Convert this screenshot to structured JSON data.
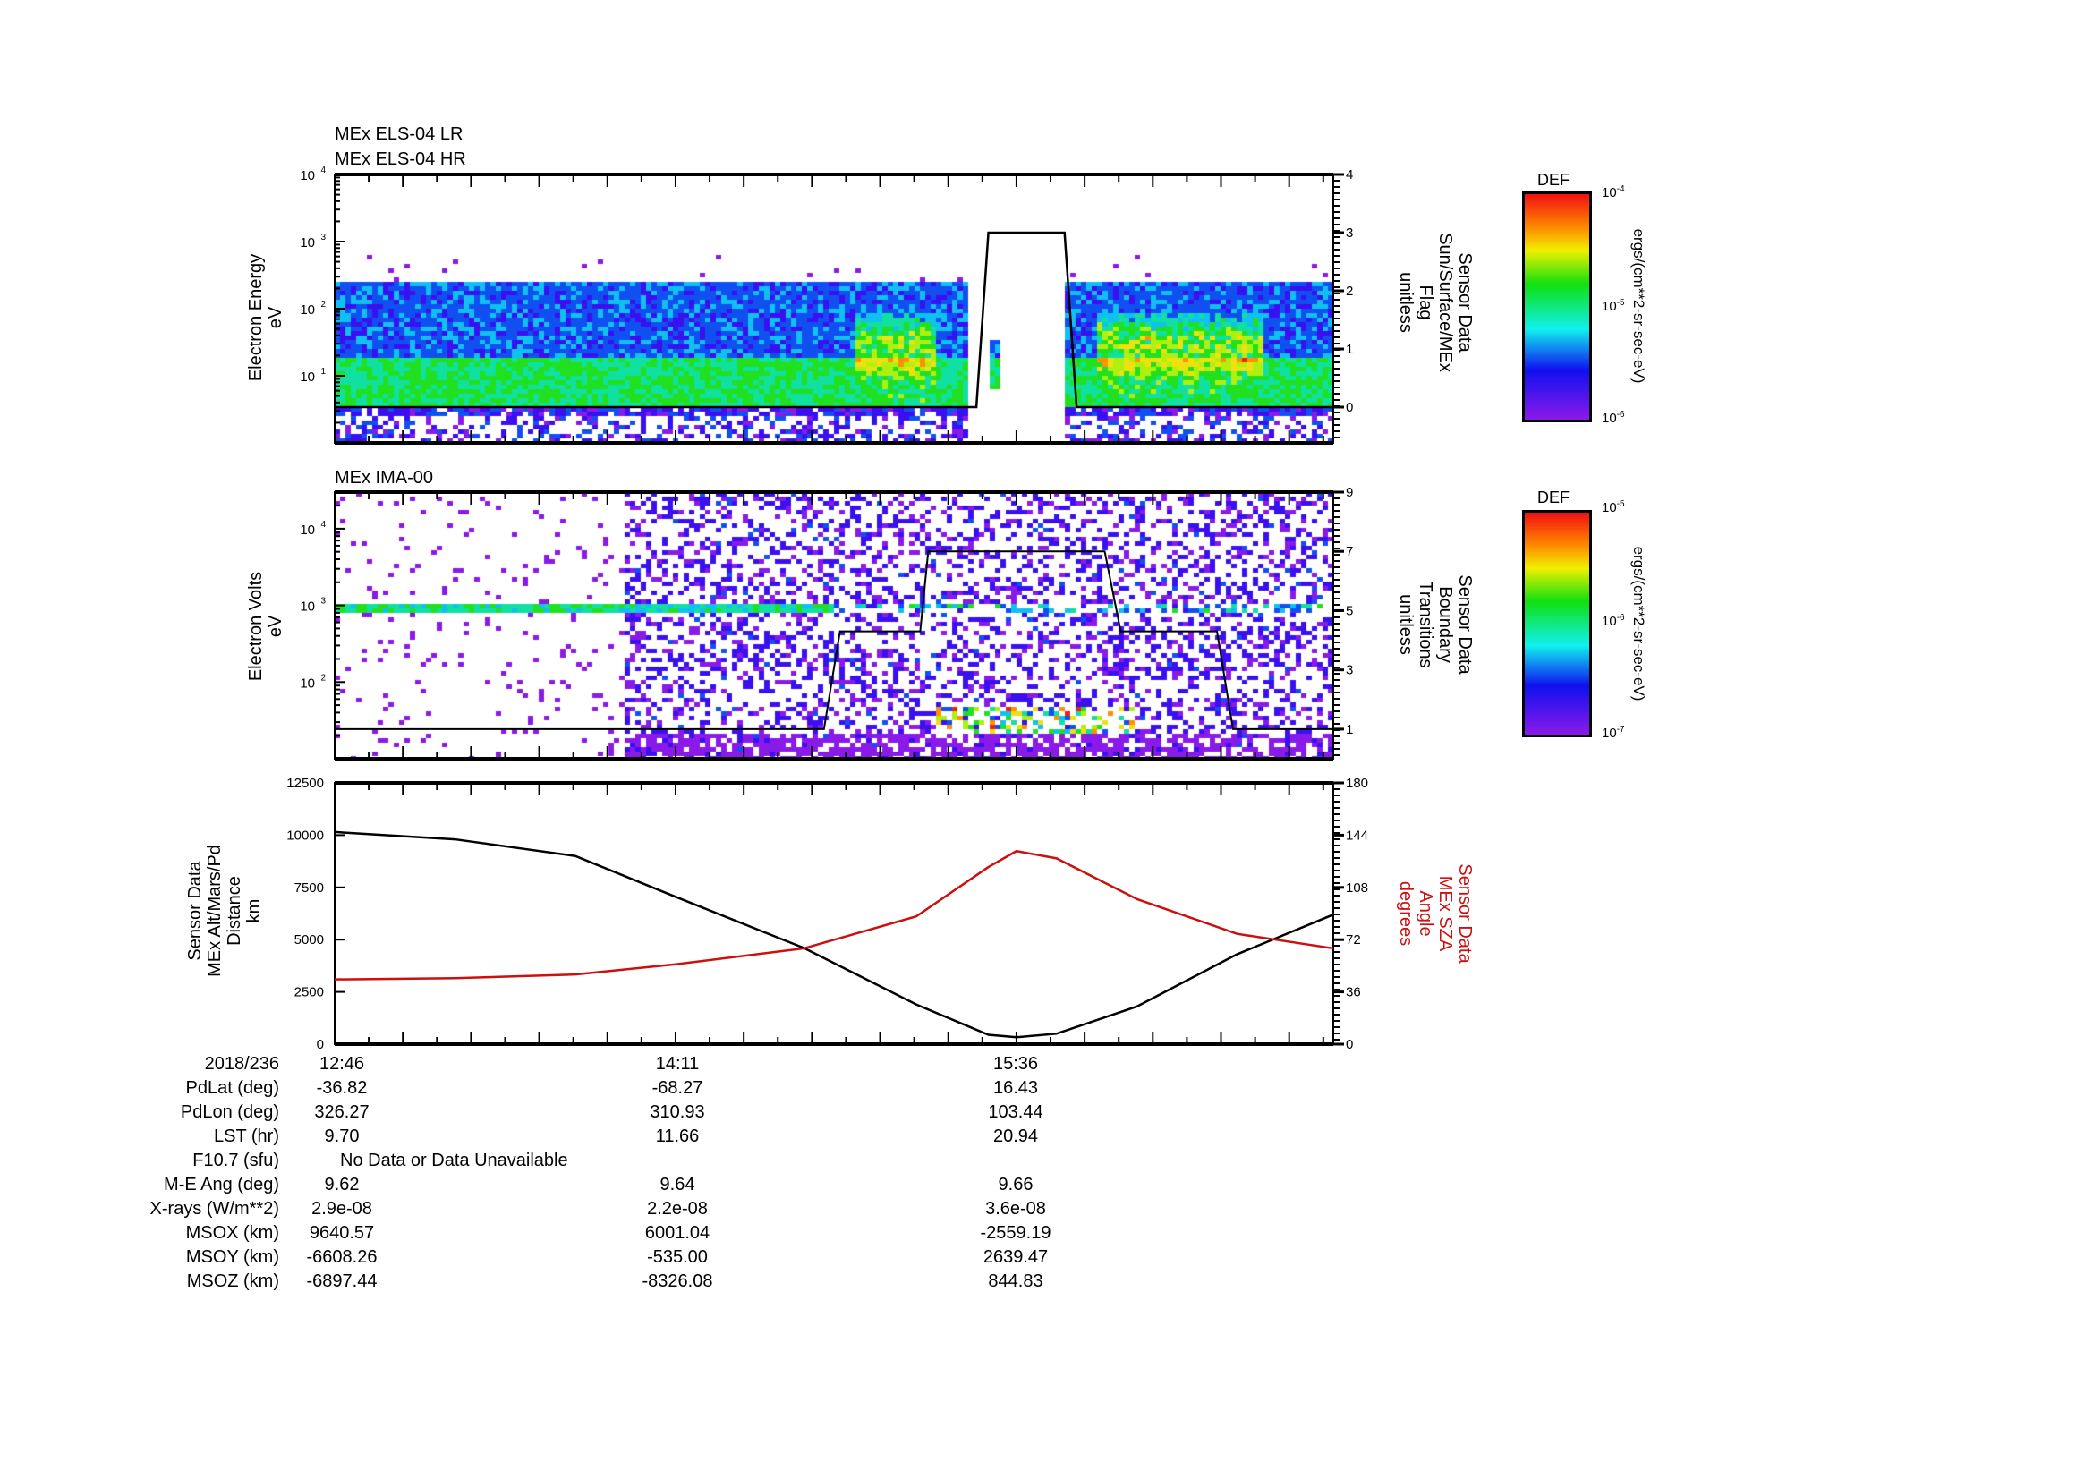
{
  "panel1": {
    "title_lr": "MEx ELS-04 LR",
    "title_hr": "MEx ELS-04 HR",
    "ylabel": "Electron Energy",
    "yunit": "eV",
    "yticks": [
      "10",
      "10",
      "10",
      "10"
    ],
    "yexp": [
      "1",
      "2",
      "3",
      "4"
    ],
    "right_label": [
      "Sensor Data",
      "Sun/Surface/MEx",
      "Flag",
      "unitless"
    ],
    "right_ticks": [
      "0",
      "1",
      "2",
      "3",
      "4"
    ],
    "colorbar": {
      "title": "DEF",
      "max": "10",
      "max_exp": "-4",
      "mid": "10",
      "mid_exp": "-5",
      "min": "10",
      "min_exp": "-6",
      "unit": "ergs/(cm**2-sr-sec-eV)"
    }
  },
  "panel2": {
    "title": "MEx IMA-00",
    "ylabel": "Electron Volts",
    "yunit": "eV",
    "yticks": [
      "10",
      "10",
      "10"
    ],
    "yexp": [
      "2",
      "3",
      "4"
    ],
    "right_label": [
      "Sensor Data",
      "Boundary",
      "Transitions",
      "unitless"
    ],
    "right_ticks": [
      "1",
      "3",
      "5",
      "7",
      "9"
    ],
    "colorbar": {
      "title": "DEF",
      "max": "10",
      "max_exp": "-5",
      "mid": "10",
      "mid_exp": "-6",
      "min": "10",
      "min_exp": "-7",
      "unit": "ergs/(cm**2-sr-sec-eV)"
    }
  },
  "panel3": {
    "left_label": [
      "Sensor Data",
      "MEx Alt/Mars/Pd",
      "Distance",
      "km"
    ],
    "right_label": [
      "Sensor Data",
      "MEx SZA",
      "Angle",
      "degrees"
    ],
    "left_ticks": [
      "0",
      "2500",
      "5000",
      "7500",
      "10000",
      "12500"
    ],
    "right_ticks": [
      "0",
      "36",
      "72",
      "108",
      "144",
      "180"
    ]
  },
  "chart_data": [
    {
      "type": "heatmap",
      "title": "MEx ELS-04 LR / HR",
      "ylabel": "Electron Energy (eV)",
      "yscale": "log",
      "ylim": [
        1,
        10000
      ],
      "x_range_minutes": [
        0,
        249
      ],
      "overlay": {
        "name": "Sun/Surface/MEx Flag",
        "ylim": [
          0,
          4
        ],
        "x": [
          0,
          160,
          163,
          182,
          185,
          249
        ],
        "y": [
          0,
          0,
          3,
          3,
          0,
          0
        ]
      }
    },
    {
      "type": "heatmap",
      "title": "MEx IMA-00",
      "ylabel": "Electron Volts (eV)",
      "yscale": "log",
      "ylim": [
        10,
        30000
      ],
      "x_range_minutes": [
        0,
        249
      ],
      "overlay": {
        "name": "Boundary Transitions",
        "ylim": [
          0,
          9
        ],
        "x": [
          0,
          122,
          126,
          146,
          148,
          192,
          196,
          220,
          224,
          249
        ],
        "y": [
          1,
          1,
          4.3,
          4.3,
          7,
          7,
          4.3,
          4.3,
          1,
          1
        ]
      }
    },
    {
      "type": "line",
      "x_minutes_since_start": [
        0,
        30,
        60,
        85,
        117,
        145,
        163,
        170,
        180,
        200,
        225,
        249
      ],
      "series": [
        {
          "name": "MEx Alt/Mars/Pd Distance (km)",
          "axis": "left",
          "color": "#000000",
          "values": [
            10150,
            9800,
            9000,
            7050,
            4600,
            1900,
            450,
            330,
            500,
            1800,
            4300,
            6200
          ]
        },
        {
          "name": "MEx SZA Angle (degrees)",
          "axis": "right",
          "color": "#cc1010",
          "values": [
            44.6,
            45.5,
            48,
            55,
            66,
            88,
            122,
            133,
            128,
            100,
            76,
            66
          ]
        }
      ],
      "ylim_left": [
        0,
        12500
      ],
      "ylim_right": [
        0,
        180
      ]
    }
  ],
  "ephem": {
    "labels": [
      "2018/236",
      "PdLat (deg)",
      "PdLon (deg)",
      "LST (hr)",
      "F10.7 (sfu)",
      "M-E Ang (deg)",
      "X-rays (W/m**2)",
      "MSOX (km)",
      "MSOY (km)",
      "MSOZ (km)"
    ],
    "cols": [
      [
        "12:46",
        "-36.82",
        "326.27",
        "9.70",
        "",
        "9.62",
        "2.9e-08",
        "9640.57",
        "-6608.26",
        "-6897.44"
      ],
      [
        "14:11",
        "-68.27",
        "310.93",
        "11.66",
        "",
        "9.64",
        "2.2e-08",
        "6001.04",
        "-535.00",
        "-8326.08"
      ],
      [
        "15:36",
        "16.43",
        "103.44",
        "20.94",
        "",
        "9.66",
        "3.6e-08",
        "-2559.19",
        "2639.47",
        "844.83"
      ]
    ],
    "f107_note": "No Data or Data Unavailable"
  }
}
